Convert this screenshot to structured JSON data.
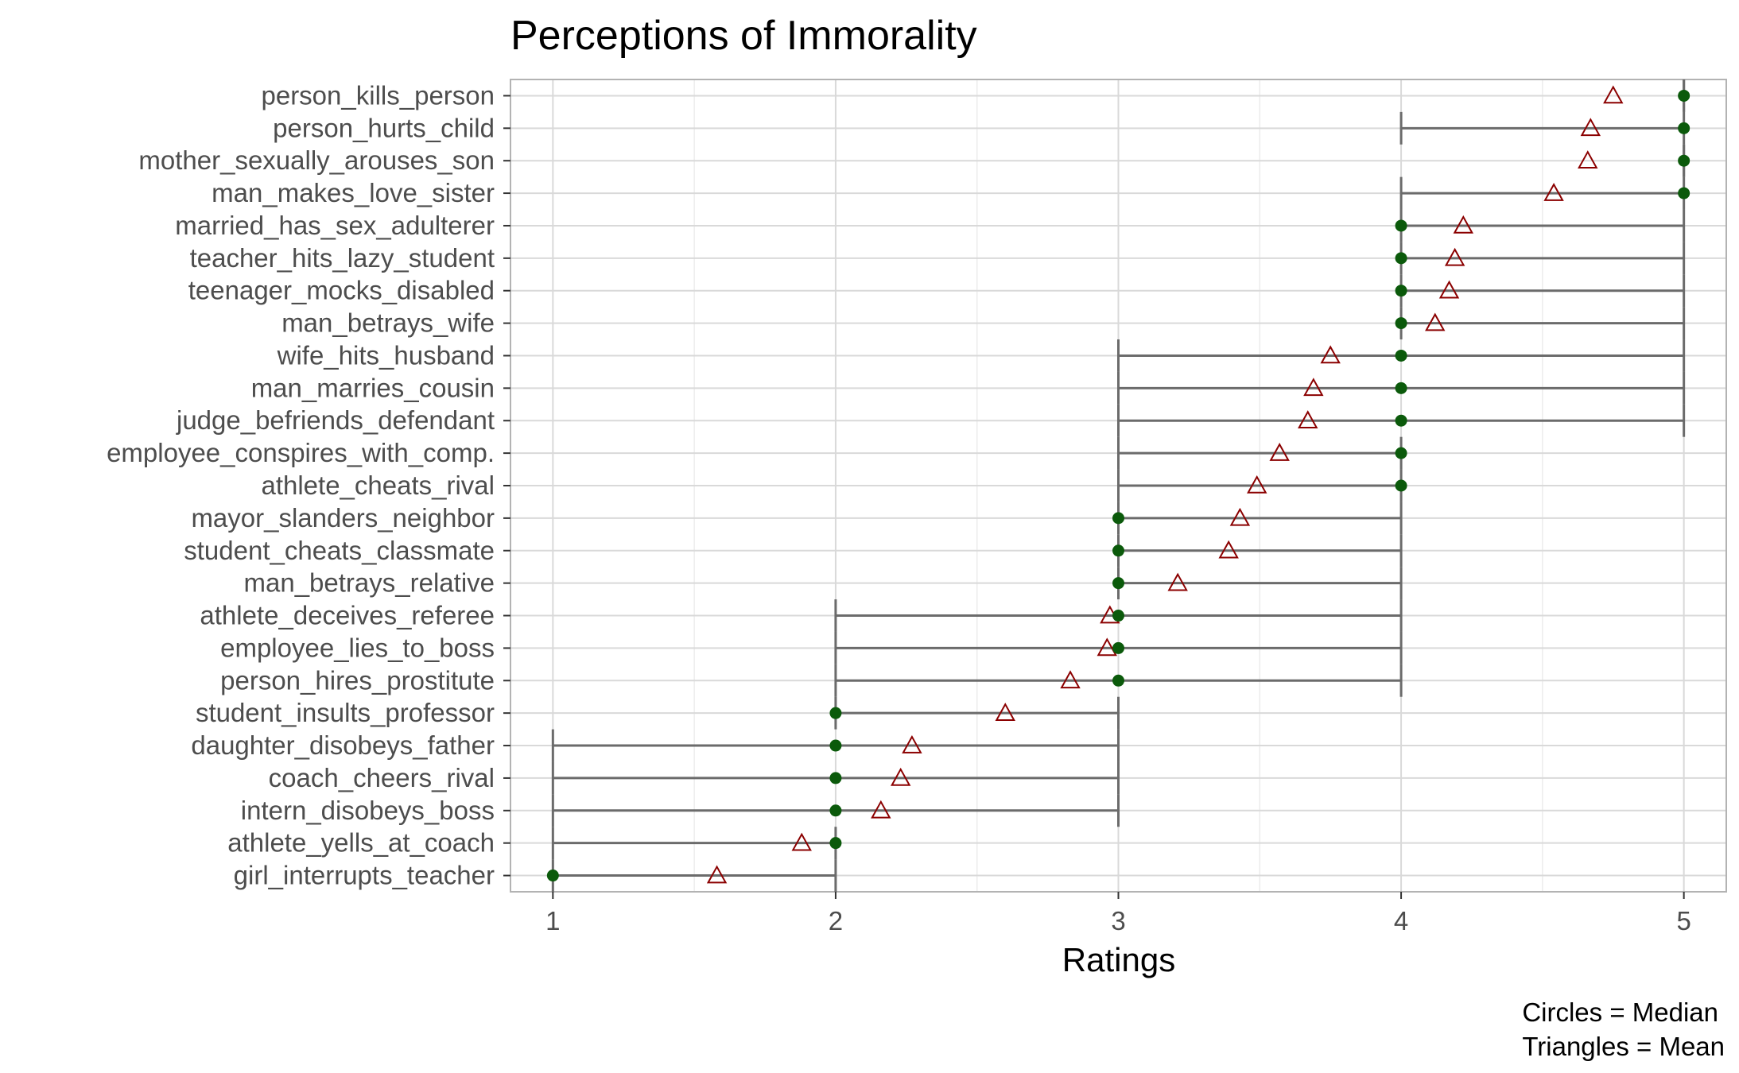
{
  "chart_data": {
    "type": "scatter",
    "title": "Perceptions of Immorality",
    "xlabel": "Ratings",
    "ylabel": "",
    "xlim": [
      0.85,
      5.15
    ],
    "x_ticks": [
      "1",
      "2",
      "3",
      "4",
      "5"
    ],
    "caption": [
      "Circles = Median",
      "Triangles = Mean"
    ],
    "grid": true,
    "colors": {
      "median": "#0b5a0b",
      "mean": "#8b0000",
      "range": "#6b6b6b",
      "grid_major": "#d9d9d9",
      "grid_minor": "#ececec",
      "panel_border": "#b3b3b3"
    },
    "categories": [
      "person_kills_person",
      "person_hurts_child",
      "mother_sexually_arouses_son",
      "man_makes_love_sister",
      "married_has_sex_adulterer",
      "teacher_hits_lazy_student",
      "teenager_mocks_disabled",
      "man_betrays_wife",
      "wife_hits_husband",
      "man_marries_cousin",
      "judge_befriends_defendant",
      "employee_conspires_with_comp.",
      "athlete_cheats_rival",
      "mayor_slanders_neighbor",
      "student_cheats_classmate",
      "man_betrays_relative",
      "athlete_deceives_referee",
      "employee_lies_to_boss",
      "person_hires_prostitute",
      "student_insults_professor",
      "daughter_disobeys_father",
      "coach_cheers_rival",
      "intern_disobeys_boss",
      "athlete_yells_at_coach",
      "girl_interrupts_teacher"
    ],
    "series": [
      {
        "name": "Median",
        "values": [
          5,
          5,
          5,
          5,
          4,
          4,
          4,
          4,
          4,
          4,
          4,
          4,
          4,
          3,
          3,
          3,
          3,
          3,
          3,
          2,
          2,
          2,
          2,
          2,
          1
        ]
      },
      {
        "name": "Mean",
        "values": [
          4.75,
          4.67,
          4.66,
          4.54,
          4.22,
          4.19,
          4.17,
          4.12,
          3.75,
          3.69,
          3.67,
          3.57,
          3.49,
          3.43,
          3.39,
          3.21,
          2.97,
          2.96,
          2.83,
          2.6,
          2.27,
          2.23,
          2.16,
          1.88,
          1.58
        ]
      },
      {
        "name": "Range low",
        "values": [
          5,
          4,
          5,
          4,
          4,
          4,
          4,
          4,
          3,
          3,
          3,
          3,
          3,
          3,
          3,
          3,
          2,
          2,
          2,
          2,
          1,
          1,
          1,
          1,
          1
        ]
      },
      {
        "name": "Range high",
        "values": [
          5,
          5,
          5,
          5,
          5,
          5,
          5,
          5,
          5,
          5,
          5,
          4,
          4,
          4,
          4,
          4,
          4,
          4,
          4,
          3,
          3,
          3,
          3,
          2,
          2
        ]
      }
    ]
  }
}
